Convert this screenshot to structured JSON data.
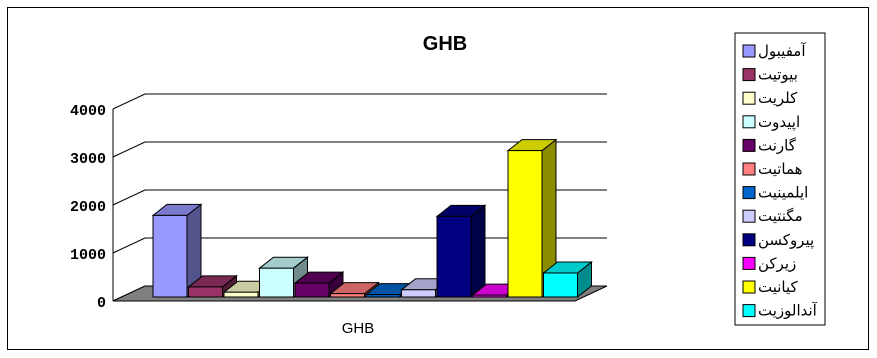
{
  "chart_data": {
    "type": "bar",
    "title": "GHB",
    "categories": [
      "GHB"
    ],
    "ylim": [
      0,
      4000
    ],
    "yticks": [
      "0",
      "1000",
      "2000",
      "3000",
      "4000"
    ],
    "grid": true,
    "legend_position": "right",
    "series": [
      {
        "name": "آمفيبول",
        "value": 1700,
        "color": "#9999ff"
      },
      {
        "name": "بيوتيت",
        "value": 210,
        "color": "#993366"
      },
      {
        "name": "کلريت",
        "value": 100,
        "color": "#ffffcc"
      },
      {
        "name": "اپيدوت",
        "value": 600,
        "color": "#ccffff"
      },
      {
        "name": "گارنت",
        "value": 290,
        "color": "#660066"
      },
      {
        "name": "هماتيت",
        "value": 70,
        "color": "#ff8080"
      },
      {
        "name": "ايلمينيت",
        "value": 50,
        "color": "#0066cc"
      },
      {
        "name": "مگنتيت",
        "value": 150,
        "color": "#ccccff"
      },
      {
        "name": "پيروکسن",
        "value": 1680,
        "color": "#000080"
      },
      {
        "name": "زيرکن",
        "value": 40,
        "color": "#ff00ff"
      },
      {
        "name": "کيانيت",
        "value": 3050,
        "color": "#ffff00"
      },
      {
        "name": "آندالوزيت",
        "value": 500,
        "color": "#00ffff"
      }
    ]
  }
}
